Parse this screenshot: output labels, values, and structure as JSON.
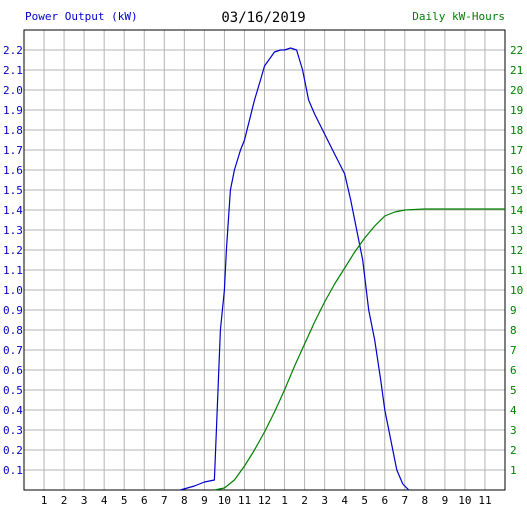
{
  "header": {
    "left_label": "Power Output (kW)",
    "date": "03/16/2019",
    "right_label": "Daily kW-Hours"
  },
  "colors": {
    "power": "#0000cc",
    "energy": "#008000",
    "grid": "#b4b4b4",
    "axis": "#000000"
  },
  "chart_data": {
    "type": "line",
    "grid": true,
    "x_tick_labels": [
      "1",
      "2",
      "3",
      "4",
      "5",
      "6",
      "7",
      "8",
      "9",
      "10",
      "11",
      "12",
      "1",
      "2",
      "3",
      "4",
      "5",
      "6",
      "7",
      "8",
      "9",
      "10",
      "11"
    ],
    "x_range_hours": [
      0,
      24
    ],
    "y_left": {
      "label": "Power Output (kW)",
      "ticks": [
        "0.1",
        "0.2",
        "0.3",
        "0.4",
        "0.5",
        "0.6",
        "0.7",
        "0.8",
        "0.9",
        "1.0",
        "1.1",
        "1.2",
        "1.3",
        "1.4",
        "1.5",
        "1.6",
        "1.7",
        "1.8",
        "1.9",
        "2.0",
        "2.1",
        "2.2"
      ],
      "range": [
        0,
        2.3
      ]
    },
    "y_right": {
      "label": "Daily kW-Hours",
      "ticks": [
        "1",
        "2",
        "3",
        "4",
        "5",
        "6",
        "7",
        "8",
        "9",
        "10",
        "11",
        "12",
        "13",
        "14",
        "15",
        "16",
        "17",
        "18",
        "19",
        "20",
        "21",
        "22"
      ],
      "range": [
        0,
        23
      ]
    },
    "series": [
      {
        "name": "Power Output (kW)",
        "axis": "left",
        "points": [
          [
            7.8,
            0.0
          ],
          [
            8.5,
            0.02
          ],
          [
            9.0,
            0.04
          ],
          [
            9.5,
            0.05
          ],
          [
            9.6,
            0.3
          ],
          [
            9.8,
            0.8
          ],
          [
            10.0,
            1.0
          ],
          [
            10.1,
            1.2
          ],
          [
            10.3,
            1.5
          ],
          [
            10.5,
            1.6
          ],
          [
            10.8,
            1.7
          ],
          [
            11.0,
            1.75
          ],
          [
            11.5,
            1.95
          ],
          [
            11.8,
            2.05
          ],
          [
            12.0,
            2.12
          ],
          [
            12.5,
            2.19
          ],
          [
            12.8,
            2.2
          ],
          [
            13.0,
            2.2
          ],
          [
            13.3,
            2.21
          ],
          [
            13.6,
            2.2
          ],
          [
            13.9,
            2.1
          ],
          [
            14.2,
            1.95
          ],
          [
            14.5,
            1.88
          ],
          [
            14.8,
            1.82
          ],
          [
            15.0,
            1.78
          ],
          [
            15.5,
            1.68
          ],
          [
            15.8,
            1.62
          ],
          [
            16.0,
            1.58
          ],
          [
            16.3,
            1.45
          ],
          [
            16.6,
            1.3
          ],
          [
            16.9,
            1.15
          ],
          [
            17.2,
            0.9
          ],
          [
            17.5,
            0.75
          ],
          [
            17.8,
            0.55
          ],
          [
            18.0,
            0.4
          ],
          [
            18.3,
            0.25
          ],
          [
            18.6,
            0.1
          ],
          [
            18.9,
            0.03
          ],
          [
            19.2,
            0.0
          ]
        ]
      },
      {
        "name": "Daily kW-Hours",
        "axis": "right",
        "points": [
          [
            9.5,
            0.0
          ],
          [
            10.0,
            0.1
          ],
          [
            10.5,
            0.5
          ],
          [
            11.0,
            1.2
          ],
          [
            11.5,
            2.0
          ],
          [
            12.0,
            2.9
          ],
          [
            12.5,
            3.9
          ],
          [
            13.0,
            5.0
          ],
          [
            13.5,
            6.2
          ],
          [
            14.0,
            7.3
          ],
          [
            14.5,
            8.4
          ],
          [
            15.0,
            9.4
          ],
          [
            15.5,
            10.3
          ],
          [
            16.0,
            11.1
          ],
          [
            16.5,
            11.9
          ],
          [
            17.0,
            12.6
          ],
          [
            17.5,
            13.2
          ],
          [
            18.0,
            13.7
          ],
          [
            18.5,
            13.9
          ],
          [
            19.0,
            14.0
          ],
          [
            20.0,
            14.05
          ],
          [
            24.0,
            14.05
          ]
        ]
      }
    ]
  }
}
